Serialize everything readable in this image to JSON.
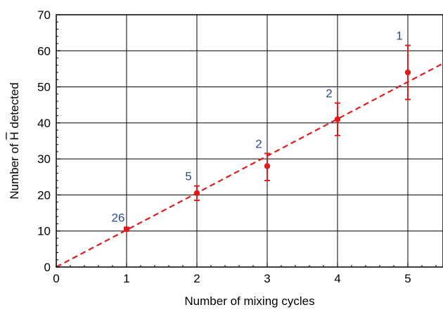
{
  "chart_data": {
    "type": "scatter",
    "xlabel": "Number of mixing cycles",
    "ylabel_prefix": "Number of ",
    "ylabel_symbol": "H",
    "ylabel_suffix": " detected",
    "xlim": [
      0,
      5.5
    ],
    "ylim": [
      0,
      70
    ],
    "x_ticks": [
      0,
      1,
      2,
      3,
      4,
      5
    ],
    "y_ticks": [
      0,
      10,
      20,
      30,
      40,
      50,
      60,
      70
    ],
    "grid": true,
    "points": [
      {
        "x": 1,
        "y": 10.5,
        "err_low": 10.0,
        "err_high": 11.0,
        "annotation": "26"
      },
      {
        "x": 2,
        "y": 20.5,
        "err_low": 18.5,
        "err_high": 22.5,
        "annotation": "5"
      },
      {
        "x": 3,
        "y": 28,
        "err_low": 24,
        "err_high": 31.5,
        "annotation": "2"
      },
      {
        "x": 4,
        "y": 41,
        "err_low": 36.5,
        "err_high": 45.5,
        "annotation": "2"
      },
      {
        "x": 5,
        "y": 54,
        "err_low": 46.5,
        "err_high": 61.5,
        "annotation": "1"
      }
    ],
    "fit_line": {
      "x": [
        0,
        5.5
      ],
      "y": [
        0,
        56.5
      ],
      "style": "dashed"
    },
    "colors": {
      "data": "#e31a1c",
      "annotation": "#2f4b8f",
      "grid": "#000000",
      "axis": "#000000"
    }
  }
}
